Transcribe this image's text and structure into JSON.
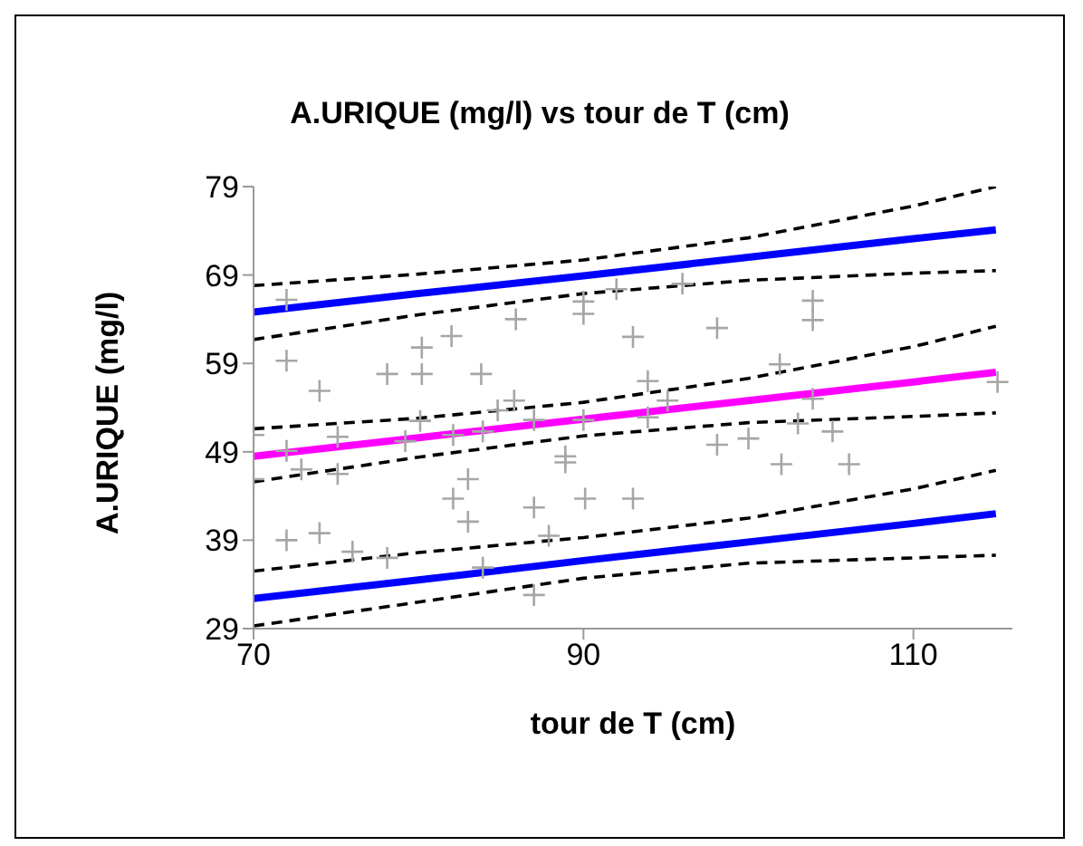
{
  "chart_data": {
    "type": "scatter",
    "title": "A.URIQUE (mg/l) vs tour de T (cm)",
    "xlabel": "tour de T (cm)",
    "ylabel": "A.URIQUE (mg/l)",
    "xlim": [
      70,
      116
    ],
    "xticks": [
      70,
      90,
      110
    ],
    "ylim": [
      29,
      79
    ],
    "yticks": [
      29,
      39,
      49,
      59,
      69,
      79
    ],
    "grid": false,
    "legend": false,
    "marker": "cross",
    "series": [
      {
        "color": "#a6a6a6",
        "x": [
          72,
          72,
          74,
          70,
          70,
          72,
          72.9,
          75.1,
          75.1,
          72,
          74,
          76,
          78.1,
          78.1,
          80.2,
          80.2,
          82,
          83.8,
          80.1,
          79.2,
          82.1,
          83.9,
          84.8,
          85.8,
          85.9,
          87,
          88.9,
          88.9,
          90,
          90,
          90,
          82.1,
          83,
          83,
          87,
          87.9,
          87,
          83.9,
          92,
          96,
          93,
          98.1,
          103.9,
          103.9,
          101.9,
          93.9,
          95.1,
          93.9,
          103.9,
          103,
          105.1,
          98.1,
          100,
          102,
          106.1,
          90.1,
          93,
          115.1
        ],
        "values": [
          66.2,
          59.3,
          55.9,
          50.9,
          45.9,
          49.1,
          47,
          50.7,
          46.5,
          39,
          39.8,
          37.7,
          37,
          57.8,
          60.8,
          57.8,
          62.1,
          57.8,
          52.5,
          50.2,
          50.9,
          51.3,
          53.7,
          54.8,
          64,
          52.6,
          48.5,
          47.8,
          52.6,
          64.6,
          66,
          43.7,
          45.9,
          41.1,
          42.7,
          39.5,
          32.8,
          35.9,
          67.4,
          68,
          62,
          63,
          66.1,
          63.9,
          58.9,
          57,
          54.8,
          52.9,
          55,
          52.2,
          51.3,
          49.8,
          50.5,
          47.6,
          47.6,
          43.7,
          43.7,
          56.9
        ]
      },
      {
        "type": "line",
        "color": "#ff00ff",
        "marker": "none",
        "line_style": "solid",
        "x": [
          70,
          80,
          90,
          100,
          110,
          115
        ],
        "values": [
          48.5,
          50.6,
          52.7,
          54.8,
          56.9,
          58
        ]
      },
      {
        "type": "line",
        "color": "#0000ff",
        "marker": "none",
        "line_style": "solid",
        "x": [
          70,
          80,
          90,
          100,
          110,
          115
        ],
        "values": [
          64.8,
          66.9,
          68.9,
          71,
          73.1,
          74.1
        ]
      },
      {
        "type": "line",
        "color": "#0000ff",
        "marker": "none",
        "line_style": "solid",
        "x": [
          70,
          80,
          90,
          100,
          110,
          115
        ],
        "values": [
          32.4,
          34.5,
          36.7,
          38.8,
          40.9,
          42
        ]
      },
      {
        "type": "line",
        "color": "#000000",
        "marker": "none",
        "line_style": "dashed",
        "x": [
          70,
          80,
          90,
          100,
          110,
          115
        ],
        "values": [
          51.6,
          52.8,
          54.6,
          57.3,
          60.9,
          63.2
        ]
      },
      {
        "type": "line",
        "color": "#000000",
        "marker": "none",
        "line_style": "dashed",
        "x": [
          70,
          80,
          90,
          100,
          110,
          115
        ],
        "values": [
          45.6,
          48.4,
          50.8,
          52.3,
          53,
          53.4
        ]
      },
      {
        "type": "line",
        "color": "#000000",
        "marker": "none",
        "line_style": "dashed",
        "x": [
          70,
          80,
          90,
          100,
          110,
          115
        ],
        "values": [
          67.8,
          69.1,
          70.7,
          73.2,
          76.8,
          79
        ]
      },
      {
        "type": "line",
        "color": "#000000",
        "marker": "none",
        "line_style": "dashed",
        "x": [
          70,
          80,
          90,
          100,
          110,
          115
        ],
        "values": [
          61.7,
          64.5,
          66.9,
          68.4,
          69.2,
          69.5
        ]
      },
      {
        "type": "line",
        "color": "#000000",
        "marker": "none",
        "line_style": "dashed",
        "x": [
          70,
          80,
          90,
          100,
          110,
          115
        ],
        "values": [
          35.5,
          37.6,
          39.3,
          41.5,
          44.8,
          46.9
        ]
      },
      {
        "type": "line",
        "color": "#000000",
        "marker": "none",
        "line_style": "dashed",
        "x": [
          70,
          80,
          90,
          100,
          110,
          115
        ],
        "values": [
          29.3,
          32,
          34.7,
          36.4,
          37,
          37.3
        ]
      }
    ]
  }
}
